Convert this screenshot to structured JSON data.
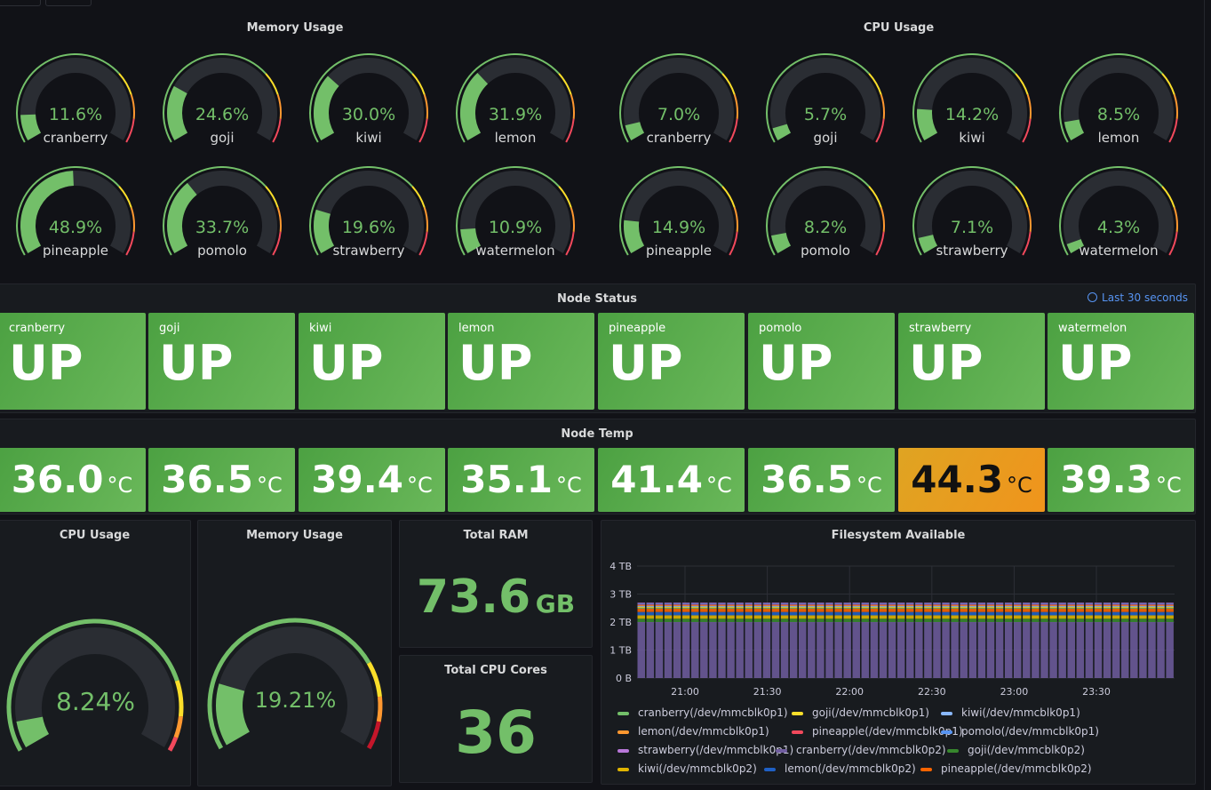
{
  "top_buttons": [
    "",
    ""
  ],
  "memory_section": {
    "title": "Memory Usage",
    "gauges": [
      {
        "name": "cranberry",
        "value": "11.6%",
        "pct": 11.6
      },
      {
        "name": "goji",
        "value": "24.6%",
        "pct": 24.6
      },
      {
        "name": "kiwi",
        "value": "30.0%",
        "pct": 30.0
      },
      {
        "name": "lemon",
        "value": "31.9%",
        "pct": 31.9
      },
      {
        "name": "pineapple",
        "value": "48.9%",
        "pct": 48.9
      },
      {
        "name": "pomolo",
        "value": "33.7%",
        "pct": 33.7
      },
      {
        "name": "strawberry",
        "value": "19.6%",
        "pct": 19.6
      },
      {
        "name": "watermelon",
        "value": "10.9%",
        "pct": 10.9
      }
    ]
  },
  "cpu_section": {
    "title": "CPU Usage",
    "gauges": [
      {
        "name": "cranberry",
        "value": "7.0%",
        "pct": 7.0
      },
      {
        "name": "goji",
        "value": "5.7%",
        "pct": 5.7
      },
      {
        "name": "kiwi",
        "value": "14.2%",
        "pct": 14.2
      },
      {
        "name": "lemon",
        "value": "8.5%",
        "pct": 8.5
      },
      {
        "name": "pineapple",
        "value": "14.9%",
        "pct": 14.9
      },
      {
        "name": "pomolo",
        "value": "8.2%",
        "pct": 8.2
      },
      {
        "name": "strawberry",
        "value": "7.1%",
        "pct": 7.1
      },
      {
        "name": "watermelon",
        "value": "4.3%",
        "pct": 4.3
      }
    ]
  },
  "node_status": {
    "title": "Node Status",
    "time_range": "Last 30 seconds",
    "nodes": [
      {
        "name": "cranberry",
        "status": "UP"
      },
      {
        "name": "goji",
        "status": "UP"
      },
      {
        "name": "kiwi",
        "status": "UP"
      },
      {
        "name": "lemon",
        "status": "UP"
      },
      {
        "name": "pineapple",
        "status": "UP"
      },
      {
        "name": "pomolo",
        "status": "UP"
      },
      {
        "name": "strawberry",
        "status": "UP"
      },
      {
        "name": "watermelon",
        "status": "UP"
      }
    ]
  },
  "node_temp": {
    "title": "Node Temp",
    "unit": "°C",
    "values": [
      {
        "value": "36.0",
        "state": "ok"
      },
      {
        "value": "36.5",
        "state": "ok"
      },
      {
        "value": "39.4",
        "state": "ok"
      },
      {
        "value": "35.1",
        "state": "ok"
      },
      {
        "value": "41.4",
        "state": "ok"
      },
      {
        "value": "36.5",
        "state": "ok"
      },
      {
        "value": "44.3",
        "state": "warn"
      },
      {
        "value": "39.3",
        "state": "ok"
      }
    ]
  },
  "cpu_total": {
    "title": "CPU Usage",
    "value": "8.24%",
    "pct": 8.24
  },
  "mem_total": {
    "title": "Memory Usage",
    "value": "19.21%",
    "pct": 19.21
  },
  "total_ram": {
    "title": "Total RAM",
    "value": "73.6",
    "unit": "GB"
  },
  "total_cpu": {
    "title": "Total CPU Cores",
    "value": "36"
  },
  "colors": {
    "green": "#73bf69",
    "yellow": "#fade2a",
    "orange": "#ff9830",
    "red": "#f2495c",
    "warn_bg": "#e5a020",
    "panel": "#181b1f",
    "track": "#2a2d33"
  },
  "chart_data": {
    "type": "bar",
    "title": "Filesystem Available",
    "y_ticks": [
      "0 B",
      "1 TB",
      "2 TB",
      "3 TB",
      "4 TB"
    ],
    "x_ticks": [
      "21:00",
      "21:30",
      "22:00",
      "22:30",
      "23:00",
      "23:30"
    ],
    "ylim": [
      0,
      4
    ],
    "y_unit": "TB",
    "bar_count": 60,
    "series": [
      {
        "name": "cranberry(/dev/mmcblk0p1)",
        "color": "#73bf69",
        "value": 0.03
      },
      {
        "name": "goji(/dev/mmcblk0p1)",
        "color": "#fade2a",
        "value": 0.03
      },
      {
        "name": "kiwi(/dev/mmcblk0p1)",
        "color": "#8ab8ff",
        "value": 0.03
      },
      {
        "name": "lemon(/dev/mmcblk0p1)",
        "color": "#ff9830",
        "value": 0.03
      },
      {
        "name": "pineapple(/dev/mmcblk0p1)",
        "color": "#f2495c",
        "value": 0.03
      },
      {
        "name": "pomolo(/dev/mmcblk0p1)",
        "color": "#5794f2",
        "value": 0.03
      },
      {
        "name": "strawberry(/dev/mmcblk0p1)",
        "color": "#b877d9",
        "value": 0.03
      },
      {
        "name": "cranberry(/dev/mmcblk0p2)",
        "color": "#705da0",
        "value": 2.0
      },
      {
        "name": "goji(/dev/mmcblk0p2)",
        "color": "#37872d",
        "value": 0.12
      },
      {
        "name": "kiwi(/dev/mmcblk0p2)",
        "color": "#e0b400",
        "value": 0.12
      },
      {
        "name": "lemon(/dev/mmcblk0p2)",
        "color": "#1f60c4",
        "value": 0.12
      },
      {
        "name": "pineapple(/dev/mmcblk0p2)",
        "color": "#fa6400",
        "value": 0.12
      }
    ]
  }
}
